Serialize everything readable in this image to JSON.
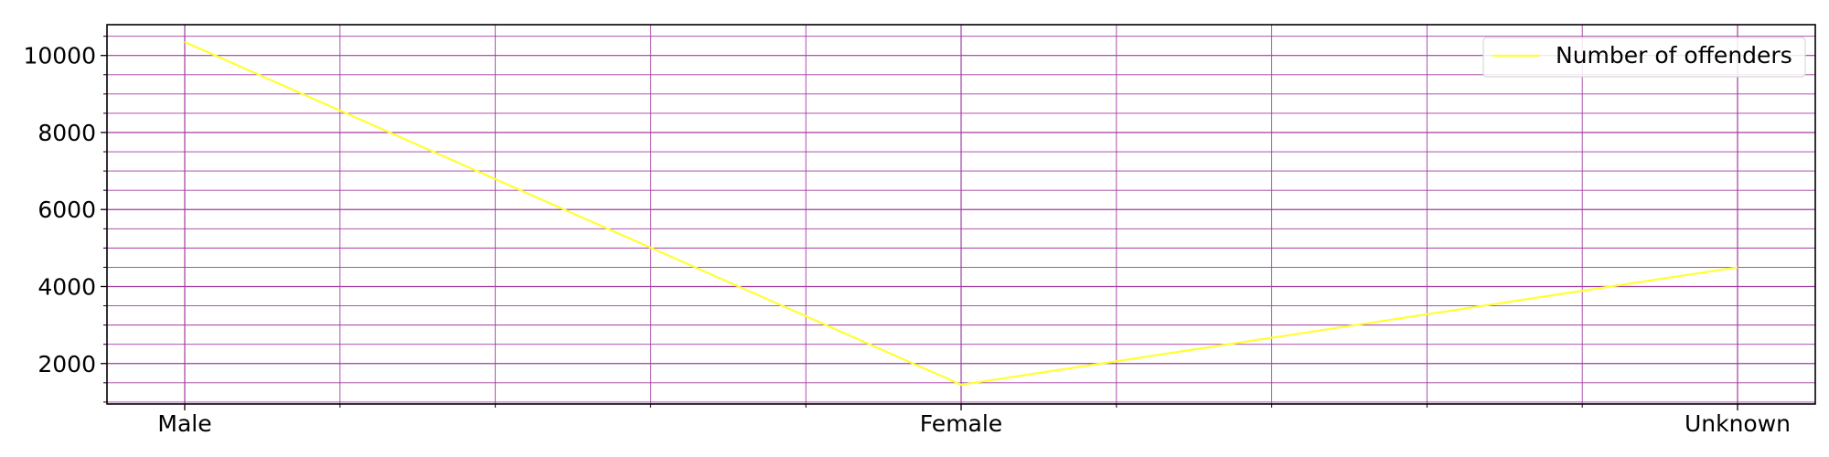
{
  "chart_data": {
    "type": "line",
    "title": "",
    "xlabel": "",
    "ylabel": "",
    "categories": [
      "Male",
      "Female",
      "Unknown"
    ],
    "series": [
      {
        "name": "Number of offenders",
        "values": [
          10350,
          1450,
          4500
        ],
        "color": "#ffff33"
      }
    ],
    "ylim": [
      950,
      10800
    ],
    "y_ticks": [
      2000,
      4000,
      6000,
      8000,
      10000
    ],
    "y_tick_labels": [
      "2000",
      "4000",
      "6000",
      "8000",
      "10000"
    ],
    "y_minor_step": 500,
    "x_minor_divisions": 5,
    "grid": true,
    "grid_color": "#a23ca2",
    "legend": "top-right"
  }
}
